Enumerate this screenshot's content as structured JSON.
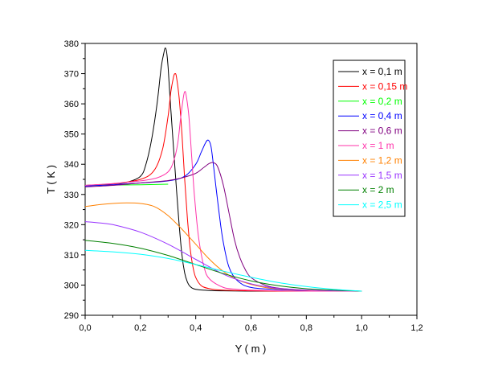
{
  "chart_data": {
    "type": "line",
    "title": "",
    "xlabel": "Y ( m )",
    "ylabel": "T ( K )",
    "xlim": [
      0.0,
      1.2
    ],
    "ylim": [
      290,
      380
    ],
    "xticks": [
      0.0,
      0.2,
      0.4,
      0.6,
      0.8,
      1.0,
      1.2
    ],
    "xtick_labels": [
      "0,0",
      "0,2",
      "0,4",
      "0,6",
      "0,8",
      "1,0",
      "1,2"
    ],
    "yticks": [
      290,
      300,
      310,
      320,
      330,
      340,
      350,
      360,
      370,
      380
    ],
    "ytick_labels": [
      "290",
      "300",
      "310",
      "320",
      "330",
      "340",
      "350",
      "360",
      "370",
      "380"
    ],
    "grid": false,
    "legend_position": "top-right",
    "series": [
      {
        "name": "x = 0,1 m",
        "color": "#000000",
        "x": [
          0.0,
          0.1,
          0.15,
          0.2,
          0.22,
          0.24,
          0.26,
          0.275,
          0.285,
          0.29,
          0.295,
          0.3,
          0.31,
          0.32,
          0.33,
          0.34,
          0.35,
          0.36,
          0.37,
          0.38,
          0.4,
          0.45,
          0.5,
          0.6,
          0.7,
          0.8,
          0.9,
          1.0
        ],
        "y": [
          333,
          333.5,
          334,
          336,
          340,
          348,
          360,
          372,
          377,
          378.5,
          377,
          372,
          358,
          345,
          332,
          320,
          310,
          304,
          301,
          299.5,
          298.6,
          298.2,
          298.1,
          298,
          298,
          298,
          298,
          298
        ]
      },
      {
        "name": "x = 0,15 m",
        "color": "#ff0000",
        "x": [
          0.0,
          0.1,
          0.2,
          0.25,
          0.28,
          0.3,
          0.31,
          0.32,
          0.325,
          0.33,
          0.34,
          0.35,
          0.36,
          0.37,
          0.38,
          0.39,
          0.4,
          0.42,
          0.45,
          0.5,
          0.6,
          0.7,
          0.8,
          0.9,
          1.0
        ],
        "y": [
          333,
          333.5,
          335,
          338,
          345,
          356,
          364,
          369,
          370,
          369,
          362,
          350,
          335,
          322,
          312,
          306,
          302.5,
          299.8,
          298.8,
          298.3,
          298.1,
          298,
          298,
          298,
          298
        ]
      },
      {
        "name": "x = 0,2 m",
        "color": "#00ff00",
        "x": [
          0.0,
          0.1,
          0.2,
          0.3
        ],
        "y": [
          333,
          333.1,
          333.2,
          333.4
        ]
      },
      {
        "name": "x = 0,4 m",
        "color": "#0000ff",
        "x": [
          0.0,
          0.1,
          0.2,
          0.3,
          0.36,
          0.4,
          0.42,
          0.435,
          0.445,
          0.455,
          0.465,
          0.475,
          0.49,
          0.5,
          0.52,
          0.55,
          0.6,
          0.7,
          0.8,
          0.9,
          1.0
        ],
        "y": [
          332.8,
          333.2,
          333.8,
          334.5,
          336,
          340,
          344,
          347,
          348,
          346,
          339,
          331,
          320,
          314,
          306,
          301.5,
          299.2,
          298.5,
          298.2,
          298,
          298
        ]
      },
      {
        "name": "x = 0,6 m",
        "color": "#800080",
        "x": [
          0.0,
          0.1,
          0.2,
          0.3,
          0.35,
          0.4,
          0.43,
          0.45,
          0.465,
          0.48,
          0.5,
          0.52,
          0.54,
          0.56,
          0.58,
          0.6,
          0.65,
          0.7,
          0.8,
          0.9,
          1.0
        ],
        "y": [
          332.5,
          333,
          333.8,
          334.6,
          335.5,
          337,
          339,
          340.3,
          340.5,
          339,
          333,
          324,
          315,
          309,
          305,
          302.5,
          300,
          299,
          298.3,
          298,
          298
        ]
      },
      {
        "name": "x = 1 m",
        "color": "#ff33aa",
        "x": [
          0.0,
          0.1,
          0.2,
          0.26,
          0.3,
          0.32,
          0.335,
          0.345,
          0.355,
          0.36,
          0.365,
          0.375,
          0.385,
          0.395,
          0.41,
          0.43,
          0.45,
          0.5,
          0.55,
          0.6,
          0.7,
          0.8,
          0.9,
          1.0
        ],
        "y": [
          333,
          333.6,
          334.5,
          335.5,
          337.5,
          341,
          347,
          355,
          362,
          364,
          363,
          356,
          343,
          330,
          316,
          306,
          302,
          299.2,
          298.6,
          298.3,
          298.1,
          298,
          298,
          298
        ]
      },
      {
        "name": "x = 1,2 m",
        "color": "#ff8000",
        "x": [
          0.0,
          0.05,
          0.1,
          0.15,
          0.2,
          0.25,
          0.3,
          0.35,
          0.4,
          0.45,
          0.5,
          0.55,
          0.6,
          0.65,
          0.7,
          0.8,
          0.9,
          1.0
        ],
        "y": [
          326,
          326.6,
          327,
          327.2,
          327,
          326,
          323,
          318.5,
          313.5,
          308.5,
          304.5,
          301.8,
          300.2,
          299.2,
          298.7,
          298.3,
          298.1,
          298
        ]
      },
      {
        "name": "x = 1,5 m",
        "color": "#9933ff",
        "x": [
          0.0,
          0.05,
          0.1,
          0.2,
          0.3,
          0.4,
          0.45,
          0.5,
          0.55,
          0.6,
          0.65,
          0.7,
          0.8,
          0.9,
          1.0
        ],
        "y": [
          321,
          320.6,
          320,
          317.5,
          313.5,
          308.5,
          306,
          303.6,
          301.8,
          300.4,
          299.5,
          298.9,
          298.4,
          298.1,
          298
        ]
      },
      {
        "name": "x = 2 m",
        "color": "#008000",
        "x": [
          0.0,
          0.1,
          0.2,
          0.3,
          0.4,
          0.5,
          0.6,
          0.7,
          0.8,
          0.9,
          1.0
        ],
        "y": [
          314.8,
          313.8,
          312.2,
          309.8,
          306.8,
          303.8,
          301.4,
          299.8,
          298.8,
          298.3,
          298
        ]
      },
      {
        "name": "x = 2,5 m",
        "color": "#00ffff",
        "x": [
          0.0,
          0.1,
          0.2,
          0.3,
          0.4,
          0.5,
          0.6,
          0.7,
          0.8,
          0.9,
          1.0
        ],
        "y": [
          311.5,
          311,
          310.2,
          308.8,
          306.8,
          304.6,
          302.6,
          300.8,
          299.5,
          298.6,
          298
        ]
      }
    ]
  }
}
